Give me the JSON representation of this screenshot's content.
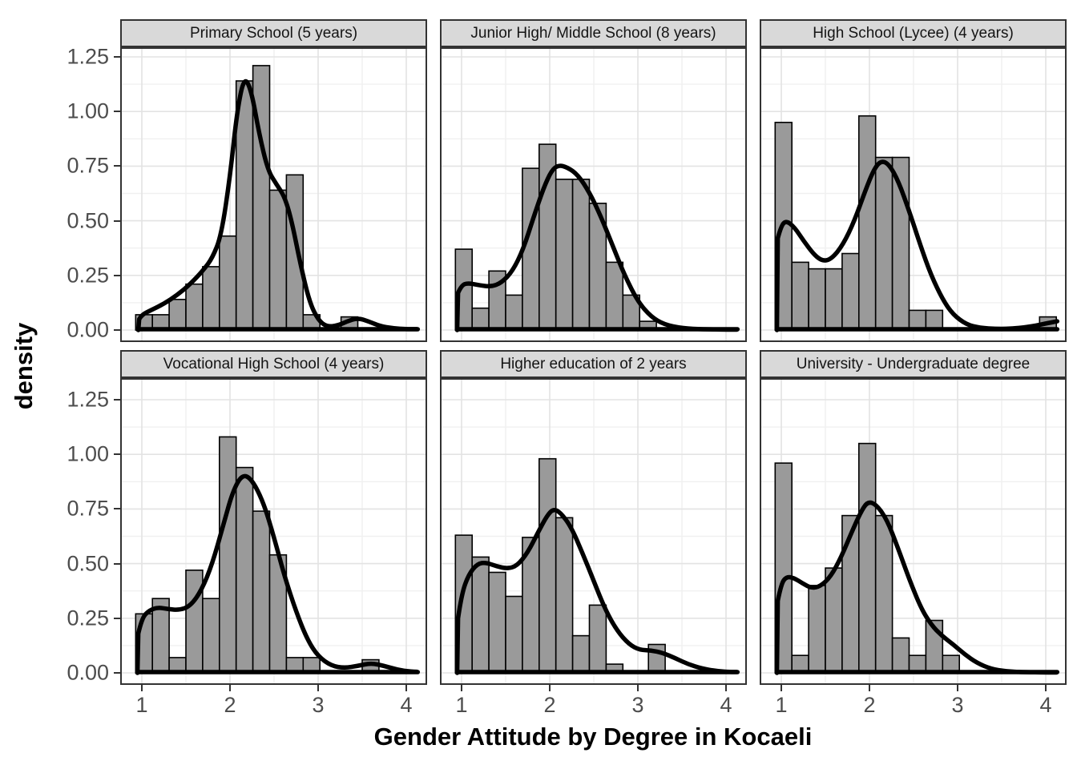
{
  "figure": {
    "x_axis_title": "Gender Attitude by Degree in Kocaeli",
    "y_axis_title": "density"
  },
  "axes": {
    "x_tick_labels": [
      "1",
      "2",
      "3",
      "4"
    ],
    "x_tick_values": [
      1,
      2,
      3,
      4
    ],
    "y_tick_labels": [
      "0.00",
      "0.25",
      "0.50",
      "0.75",
      "1.00",
      "1.25"
    ],
    "y_tick_values": [
      0,
      0.25,
      0.5,
      0.75,
      1.0,
      1.25
    ],
    "grid": "on",
    "x_range": [
      0.75,
      4.25
    ],
    "y_range": [
      -0.05,
      1.3
    ]
  },
  "style": {
    "bar_fill": "#9a9a9a",
    "bar_stroke": "#000000",
    "curve_color": "#000000",
    "panel_border": "#333333",
    "strip_fill": "#d9d9d9",
    "grid_major": "#e3e3e3",
    "grid_minor": "#f0f0f0",
    "tick_text": "#4d4d4d"
  },
  "chart_data": {
    "type": "histogram+density",
    "title": "Gender Attitude by Degree in Kocaeli",
    "xlabel": "Gender Attitude by Degree in Kocaeli",
    "ylabel": "density",
    "bin_width": 0.19,
    "layout": "facet 2 rows x 3 cols",
    "facets": [
      {
        "label": "Primary School (5 years)",
        "bars": [
          [
            0.93,
            0.07
          ],
          [
            1.12,
            0.07
          ],
          [
            1.31,
            0.14
          ],
          [
            1.5,
            0.21
          ],
          [
            1.69,
            0.29
          ],
          [
            1.88,
            0.43
          ],
          [
            2.07,
            1.14
          ],
          [
            2.26,
            1.21
          ],
          [
            2.45,
            0.64
          ],
          [
            2.64,
            0.71
          ],
          [
            2.83,
            0.07
          ],
          [
            3.26,
            0.06
          ]
        ],
        "curve": [
          [
            0.96,
            0.0
          ],
          [
            0.97,
            0.05
          ],
          [
            1.0,
            0.07
          ],
          [
            1.1,
            0.09
          ],
          [
            1.25,
            0.12
          ],
          [
            1.4,
            0.16
          ],
          [
            1.55,
            0.21
          ],
          [
            1.7,
            0.275
          ],
          [
            1.8,
            0.33
          ],
          [
            1.9,
            0.43
          ],
          [
            2.0,
            0.7
          ],
          [
            2.08,
            1.0
          ],
          [
            2.16,
            1.16
          ],
          [
            2.24,
            1.1
          ],
          [
            2.33,
            0.9
          ],
          [
            2.43,
            0.73
          ],
          [
            2.53,
            0.665
          ],
          [
            2.62,
            0.61
          ],
          [
            2.7,
            0.5
          ],
          [
            2.8,
            0.3
          ],
          [
            2.9,
            0.13
          ],
          [
            3.0,
            0.045
          ],
          [
            3.1,
            0.015
          ],
          [
            3.22,
            0.02
          ],
          [
            3.33,
            0.04
          ],
          [
            3.45,
            0.055
          ],
          [
            3.57,
            0.04
          ],
          [
            3.7,
            0.018
          ],
          [
            3.85,
            0.008
          ],
          [
            4.0,
            0.004
          ],
          [
            4.12,
            0.004
          ]
        ]
      },
      {
        "label": "Junior High/ Middle School (8 years)",
        "bars": [
          [
            0.93,
            0.37
          ],
          [
            1.12,
            0.1
          ],
          [
            1.31,
            0.27
          ],
          [
            1.5,
            0.16
          ],
          [
            1.69,
            0.74
          ],
          [
            1.88,
            0.85
          ],
          [
            2.07,
            0.69
          ],
          [
            2.26,
            0.69
          ],
          [
            2.45,
            0.58
          ],
          [
            2.64,
            0.31
          ],
          [
            2.83,
            0.16
          ],
          [
            3.02,
            0.04
          ]
        ],
        "curve": [
          [
            0.95,
            0.0
          ],
          [
            0.96,
            0.17
          ],
          [
            1.0,
            0.205
          ],
          [
            1.07,
            0.215
          ],
          [
            1.2,
            0.205
          ],
          [
            1.33,
            0.198
          ],
          [
            1.45,
            0.215
          ],
          [
            1.58,
            0.27
          ],
          [
            1.7,
            0.37
          ],
          [
            1.82,
            0.52
          ],
          [
            1.93,
            0.65
          ],
          [
            2.02,
            0.73
          ],
          [
            2.1,
            0.755
          ],
          [
            2.2,
            0.745
          ],
          [
            2.32,
            0.71
          ],
          [
            2.45,
            0.63
          ],
          [
            2.58,
            0.52
          ],
          [
            2.72,
            0.38
          ],
          [
            2.85,
            0.25
          ],
          [
            3.0,
            0.13
          ],
          [
            3.15,
            0.06
          ],
          [
            3.3,
            0.025
          ],
          [
            3.5,
            0.008
          ],
          [
            3.75,
            0.003
          ],
          [
            4.0,
            0.002
          ],
          [
            4.12,
            0.002
          ]
        ]
      },
      {
        "label": "High School (Lycee) (4 years)",
        "bars": [
          [
            0.93,
            0.95
          ],
          [
            1.12,
            0.31
          ],
          [
            1.31,
            0.28
          ],
          [
            1.5,
            0.28
          ],
          [
            1.69,
            0.35
          ],
          [
            1.88,
            0.98
          ],
          [
            2.07,
            0.79
          ],
          [
            2.26,
            0.79
          ],
          [
            2.45,
            0.09
          ],
          [
            2.64,
            0.09
          ],
          [
            3.93,
            0.06
          ]
        ],
        "curve": [
          [
            0.95,
            0.0
          ],
          [
            0.96,
            0.42
          ],
          [
            1.0,
            0.48
          ],
          [
            1.06,
            0.5
          ],
          [
            1.15,
            0.47
          ],
          [
            1.25,
            0.41
          ],
          [
            1.37,
            0.345
          ],
          [
            1.47,
            0.315
          ],
          [
            1.57,
            0.325
          ],
          [
            1.7,
            0.39
          ],
          [
            1.83,
            0.5
          ],
          [
            1.95,
            0.635
          ],
          [
            2.05,
            0.735
          ],
          [
            2.13,
            0.775
          ],
          [
            2.22,
            0.76
          ],
          [
            2.33,
            0.68
          ],
          [
            2.45,
            0.545
          ],
          [
            2.58,
            0.385
          ],
          [
            2.7,
            0.25
          ],
          [
            2.83,
            0.14
          ],
          [
            2.95,
            0.07
          ],
          [
            3.1,
            0.025
          ],
          [
            3.25,
            0.01
          ],
          [
            3.45,
            0.005
          ],
          [
            3.65,
            0.007
          ],
          [
            3.85,
            0.017
          ],
          [
            4.0,
            0.03
          ],
          [
            4.13,
            0.04
          ]
        ]
      },
      {
        "label": "Vocational High School (4 years)",
        "bars": [
          [
            0.93,
            0.27
          ],
          [
            1.12,
            0.34
          ],
          [
            1.31,
            0.07
          ],
          [
            1.5,
            0.47
          ],
          [
            1.69,
            0.34
          ],
          [
            1.88,
            1.08
          ],
          [
            2.07,
            0.94
          ],
          [
            2.26,
            0.74
          ],
          [
            2.45,
            0.54
          ],
          [
            2.64,
            0.07
          ],
          [
            2.83,
            0.07
          ],
          [
            3.5,
            0.06
          ]
        ],
        "curve": [
          [
            0.95,
            0.0
          ],
          [
            0.96,
            0.18
          ],
          [
            1.0,
            0.25
          ],
          [
            1.08,
            0.285
          ],
          [
            1.18,
            0.3
          ],
          [
            1.3,
            0.292
          ],
          [
            1.42,
            0.287
          ],
          [
            1.55,
            0.305
          ],
          [
            1.68,
            0.38
          ],
          [
            1.8,
            0.5
          ],
          [
            1.92,
            0.67
          ],
          [
            2.03,
            0.83
          ],
          [
            2.14,
            0.91
          ],
          [
            2.25,
            0.885
          ],
          [
            2.38,
            0.78
          ],
          [
            2.5,
            0.62
          ],
          [
            2.62,
            0.44
          ],
          [
            2.75,
            0.28
          ],
          [
            2.88,
            0.15
          ],
          [
            3.0,
            0.075
          ],
          [
            3.15,
            0.032
          ],
          [
            3.3,
            0.022
          ],
          [
            3.45,
            0.032
          ],
          [
            3.6,
            0.045
          ],
          [
            3.75,
            0.032
          ],
          [
            3.9,
            0.014
          ],
          [
            4.05,
            0.006
          ],
          [
            4.12,
            0.005
          ]
        ]
      },
      {
        "label": "Higher education of 2 years",
        "bars": [
          [
            0.93,
            0.63
          ],
          [
            1.12,
            0.53
          ],
          [
            1.31,
            0.46
          ],
          [
            1.5,
            0.35
          ],
          [
            1.69,
            0.62
          ],
          [
            1.88,
            0.98
          ],
          [
            2.07,
            0.71
          ],
          [
            2.26,
            0.17
          ],
          [
            2.45,
            0.31
          ],
          [
            2.64,
            0.04
          ],
          [
            3.12,
            0.13
          ]
        ],
        "curve": [
          [
            0.95,
            0.0
          ],
          [
            0.96,
            0.25
          ],
          [
            1.0,
            0.36
          ],
          [
            1.08,
            0.45
          ],
          [
            1.18,
            0.5
          ],
          [
            1.28,
            0.505
          ],
          [
            1.4,
            0.487
          ],
          [
            1.52,
            0.477
          ],
          [
            1.63,
            0.49
          ],
          [
            1.75,
            0.55
          ],
          [
            1.87,
            0.645
          ],
          [
            1.97,
            0.72
          ],
          [
            2.04,
            0.75
          ],
          [
            2.12,
            0.735
          ],
          [
            2.24,
            0.67
          ],
          [
            2.37,
            0.55
          ],
          [
            2.5,
            0.42
          ],
          [
            2.63,
            0.29
          ],
          [
            2.76,
            0.195
          ],
          [
            2.9,
            0.13
          ],
          [
            3.02,
            0.105
          ],
          [
            3.15,
            0.103
          ],
          [
            3.28,
            0.092
          ],
          [
            3.42,
            0.068
          ],
          [
            3.57,
            0.04
          ],
          [
            3.72,
            0.02
          ],
          [
            3.9,
            0.008
          ],
          [
            4.05,
            0.004
          ],
          [
            4.12,
            0.004
          ]
        ]
      },
      {
        "label": "University - Undergraduate degree",
        "bars": [
          [
            0.93,
            0.96
          ],
          [
            1.12,
            0.08
          ],
          [
            1.31,
            0.4
          ],
          [
            1.5,
            0.48
          ],
          [
            1.69,
            0.72
          ],
          [
            1.88,
            1.05
          ],
          [
            2.07,
            0.72
          ],
          [
            2.26,
            0.16
          ],
          [
            2.45,
            0.08
          ],
          [
            2.64,
            0.24
          ],
          [
            2.83,
            0.08
          ]
        ],
        "curve": [
          [
            0.95,
            0.0
          ],
          [
            0.96,
            0.33
          ],
          [
            1.0,
            0.41
          ],
          [
            1.06,
            0.44
          ],
          [
            1.14,
            0.435
          ],
          [
            1.24,
            0.41
          ],
          [
            1.34,
            0.388
          ],
          [
            1.44,
            0.395
          ],
          [
            1.56,
            0.44
          ],
          [
            1.68,
            0.53
          ],
          [
            1.8,
            0.645
          ],
          [
            1.9,
            0.735
          ],
          [
            1.98,
            0.785
          ],
          [
            2.08,
            0.77
          ],
          [
            2.2,
            0.7
          ],
          [
            2.32,
            0.575
          ],
          [
            2.45,
            0.43
          ],
          [
            2.58,
            0.3
          ],
          [
            2.7,
            0.22
          ],
          [
            2.82,
            0.17
          ],
          [
            2.95,
            0.13
          ],
          [
            3.08,
            0.085
          ],
          [
            3.22,
            0.045
          ],
          [
            3.38,
            0.018
          ],
          [
            3.55,
            0.007
          ],
          [
            3.75,
            0.003
          ],
          [
            4.0,
            0.002
          ],
          [
            4.12,
            0.002
          ]
        ]
      }
    ]
  }
}
